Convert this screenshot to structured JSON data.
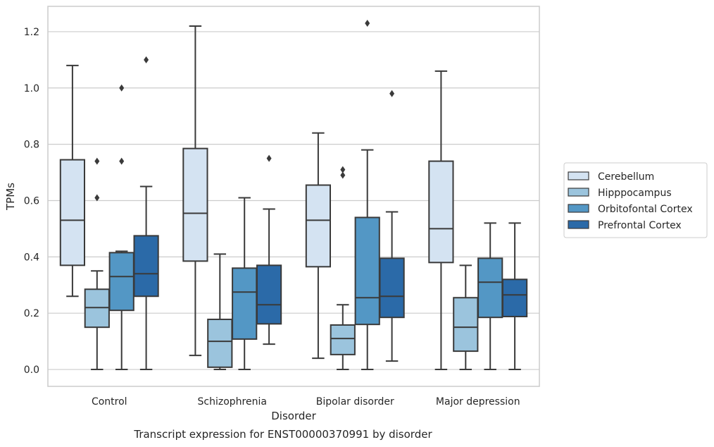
{
  "chart_data": {
    "type": "boxplot",
    "caption": "Transcript expression for ENST00000370991 by disorder",
    "xlabel": "Disorder",
    "ylabel": "TPMs",
    "ylim": [
      -0.06,
      1.29
    ],
    "yticks": [
      "0.0",
      "0.2",
      "0.4",
      "0.6",
      "0.8",
      "1.0",
      "1.2"
    ],
    "grid": true,
    "legend_position": "right",
    "categories": [
      "Control",
      "Schizophrenia",
      "Bipolar disorder",
      "Major depression"
    ],
    "series": [
      {
        "name": "Cerebellum",
        "color": "#d4e3f2",
        "boxes": [
          {
            "whisker_low": 0.26,
            "q1": 0.37,
            "median": 0.53,
            "q3": 0.745,
            "whisker_high": 1.08,
            "outliers": []
          },
          {
            "whisker_low": 0.05,
            "q1": 0.385,
            "median": 0.555,
            "q3": 0.785,
            "whisker_high": 1.22,
            "outliers": []
          },
          {
            "whisker_low": 0.04,
            "q1": 0.365,
            "median": 0.53,
            "q3": 0.655,
            "whisker_high": 0.84,
            "outliers": []
          },
          {
            "whisker_low": 0.0,
            "q1": 0.38,
            "median": 0.5,
            "q3": 0.74,
            "whisker_high": 1.06,
            "outliers": []
          }
        ]
      },
      {
        "name": "Hipppocampus",
        "color": "#9bc4dd",
        "boxes": [
          {
            "whisker_low": 0.0,
            "q1": 0.15,
            "median": 0.22,
            "q3": 0.285,
            "whisker_high": 0.35,
            "outliers": [
              0.61,
              0.74
            ]
          },
          {
            "whisker_low": 0.0,
            "q1": 0.008,
            "median": 0.1,
            "q3": 0.178,
            "whisker_high": 0.41,
            "outliers": []
          },
          {
            "whisker_low": 0.0,
            "q1": 0.053,
            "median": 0.11,
            "q3": 0.158,
            "whisker_high": 0.23,
            "outliers": [
              0.69,
              0.71
            ]
          },
          {
            "whisker_low": 0.0,
            "q1": 0.065,
            "median": 0.15,
            "q3": 0.255,
            "whisker_high": 0.37,
            "outliers": []
          }
        ]
      },
      {
        "name": "Orbitofontal Cortex",
        "color": "#5397c5",
        "boxes": [
          {
            "whisker_low": 0.0,
            "q1": 0.21,
            "median": 0.33,
            "q3": 0.415,
            "whisker_high": 0.42,
            "outliers": [
              0.74,
              1.0
            ]
          },
          {
            "whisker_low": 0.0,
            "q1": 0.108,
            "median": 0.275,
            "q3": 0.36,
            "whisker_high": 0.61,
            "outliers": []
          },
          {
            "whisker_low": 0.0,
            "q1": 0.16,
            "median": 0.255,
            "q3": 0.54,
            "whisker_high": 0.78,
            "outliers": [
              1.23
            ]
          },
          {
            "whisker_low": 0.0,
            "q1": 0.185,
            "median": 0.31,
            "q3": 0.395,
            "whisker_high": 0.52,
            "outliers": []
          }
        ]
      },
      {
        "name": "Prefrontal Cortex",
        "color": "#2b6aa8",
        "boxes": [
          {
            "whisker_low": 0.0,
            "q1": 0.26,
            "median": 0.34,
            "q3": 0.475,
            "whisker_high": 0.65,
            "outliers": [
              1.1
            ]
          },
          {
            "whisker_low": 0.09,
            "q1": 0.162,
            "median": 0.23,
            "q3": 0.37,
            "whisker_high": 0.57,
            "outliers": [
              0.75
            ]
          },
          {
            "whisker_low": 0.03,
            "q1": 0.185,
            "median": 0.26,
            "q3": 0.395,
            "whisker_high": 0.56,
            "outliers": [
              0.98
            ]
          },
          {
            "whisker_low": 0.0,
            "q1": 0.188,
            "median": 0.265,
            "q3": 0.32,
            "whisker_high": 0.52,
            "outliers": []
          }
        ]
      }
    ]
  }
}
